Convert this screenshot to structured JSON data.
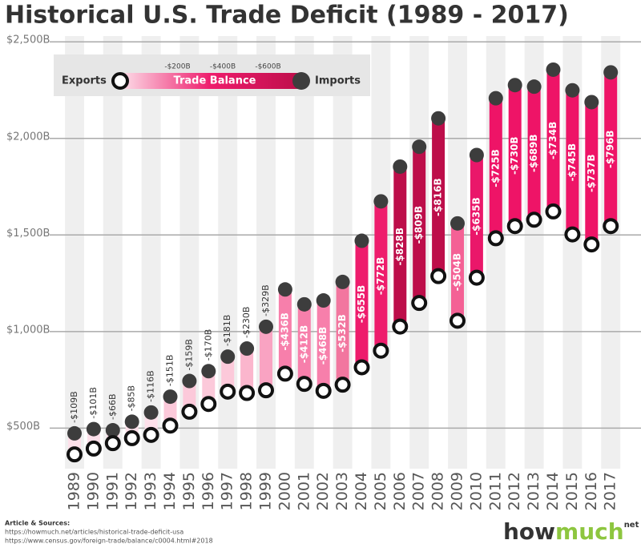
{
  "chart_data": {
    "type": "dumbbell",
    "title": "Historical U.S. Trade Deficit (1989 - 2017)",
    "categories": [
      "1989",
      "1990",
      "1991",
      "1992",
      "1993",
      "1994",
      "1995",
      "1996",
      "1997",
      "1998",
      "1999",
      "2000",
      "2001",
      "2002",
      "2003",
      "2004",
      "2005",
      "2006",
      "2007",
      "2008",
      "2009",
      "2010",
      "2011",
      "2012",
      "2013",
      "2014",
      "2015",
      "2016",
      "2017"
    ],
    "series": [
      {
        "name": "Exports",
        "color": "#ffffff",
        "values": [
          364,
          394,
          422,
          448,
          465,
          513,
          585,
          625,
          689,
          682,
          696,
          782,
          729,
          693,
          725,
          815,
          901,
          1026,
          1148,
          1287,
          1056,
          1279,
          1483,
          1546,
          1579,
          1622,
          1503,
          1451,
          1546
        ]
      },
      {
        "name": "Imports",
        "color": "#3d3d3d",
        "values": [
          473,
          495,
          489,
          533,
          581,
          663,
          744,
          795,
          870,
          912,
          1025,
          1218,
          1141,
          1161,
          1257,
          1470,
          1674,
          1854,
          1957,
          2104,
          1560,
          1914,
          2208,
          2276,
          2268,
          2356,
          2249,
          2188,
          2342
        ]
      }
    ],
    "balance": {
      "name": "Trade Balance",
      "values": [
        -109,
        -101,
        -66,
        -85,
        -116,
        -151,
        -159,
        -170,
        -181,
        -230,
        -329,
        -436,
        -412,
        -468,
        -532,
        -655,
        -772,
        -828,
        -809,
        -816,
        -504,
        -635,
        -725,
        -730,
        -689,
        -734,
        -745,
        -737,
        -796
      ],
      "value_labels": [
        "-$109B",
        "-$101B",
        "-$66B",
        "-$85B",
        "-$116B",
        "-$151B",
        "-$159B",
        "-$170B",
        "-$181B",
        "-$230B",
        "-$329B",
        "-$436B",
        "-$412B",
        "-$468B",
        "-$532B",
        "-$655B",
        "-$772B",
        "-$828B",
        "-$809B",
        "-$816B",
        "-$504B",
        "-$635B",
        "-$725B",
        "-$730B",
        "-$689B",
        "-$734B",
        "-$745B",
        "-$737B",
        "-$796B"
      ],
      "colors": [
        "#fde0ea",
        "#fde0ea",
        "#fde0ea",
        "#fde0ea",
        "#fde0ea",
        "#fcc9da",
        "#fcc9da",
        "#fcc9da",
        "#fcc9da",
        "#fbb6cd",
        "#f9a3c2",
        "#f77fab",
        "#f77fab",
        "#f77fab",
        "#f2769f",
        "#ee1c6c",
        "#ee1c6c",
        "#bd0e4a",
        "#bd0e4a",
        "#bd0e4a",
        "#f46195",
        "#ea176a",
        "#ee1467",
        "#ee1467",
        "#ee1467",
        "#ee1467",
        "#ee1467",
        "#ee1467",
        "#ee1467"
      ],
      "legend_ticks": [
        {
          "value": -200,
          "label": "-$200B"
        },
        {
          "value": -400,
          "label": "-$400B"
        },
        {
          "value": -600,
          "label": "-$600B"
        }
      ]
    },
    "ylim": [
      290,
      2530
    ],
    "yticks": [
      {
        "value": 500,
        "label": "$500B"
      },
      {
        "value": 1000,
        "label": "$1,000B"
      },
      {
        "value": 1500,
        "label": "$1,500B"
      },
      {
        "value": 2000,
        "label": "$2,000B"
      },
      {
        "value": 2500,
        "label": "$2,500B"
      }
    ],
    "grid": true,
    "source_title": "Article & Sources:",
    "sources": [
      "https://howmuch.net/articles/historical-trade-deficit-usa",
      "https://www.census.gov/foreign-trade/balance/c0004.html#2018"
    ],
    "brand": [
      "how",
      "much",
      "net"
    ]
  }
}
